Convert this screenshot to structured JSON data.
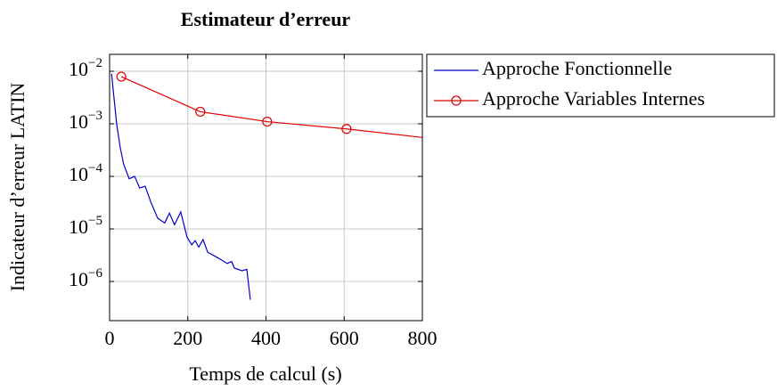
{
  "chart_data": {
    "type": "line",
    "title": "Estimateur d’erreur",
    "x_label": "Temps de calcul (s)",
    "y_label": "Indicateur d’erreur LATIN",
    "xlim": [
      0,
      800
    ],
    "xticks": [
      0,
      200,
      400,
      600,
      800
    ],
    "ylim": [
      1.8e-07,
      0.021
    ],
    "yticks": [
      {
        "value": 0.01,
        "label": "10−2"
      },
      {
        "value": 0.001,
        "label": "10−3"
      },
      {
        "value": 0.0001,
        "label": "10−4"
      },
      {
        "value": 1e-05,
        "label": "10−5"
      },
      {
        "value": 1e-06,
        "label": "10−6"
      }
    ],
    "log_y": true,
    "grid": true,
    "legend": "outside right",
    "series": [
      {
        "name": "Approche Fonctionnelle",
        "color": "#0000cc",
        "marker": "none",
        "x": [
          5,
          18,
          27,
          36,
          50,
          64,
          77,
          91,
          105,
          123,
          141,
          153,
          166,
          182,
          198,
          210,
          219,
          228,
          239,
          251,
          278,
          301,
          312,
          319,
          339,
          351,
          360
        ],
        "values": [
          0.009,
          0.001,
          0.00036,
          0.00017,
          9e-05,
          0.0001,
          6e-05,
          6.5e-05,
          3.3e-05,
          1.6e-05,
          1.3e-05,
          2e-05,
          1.2e-05,
          2.1e-05,
          7e-06,
          5e-06,
          6e-06,
          4.5e-06,
          6.3e-06,
          3.6e-06,
          2.8e-06,
          2.2e-06,
          2.4e-06,
          1.8e-06,
          1.6e-06,
          1.7e-06,
          4.5e-07
        ]
      },
      {
        "name": "Approche Variables Internes",
        "color": "#e00000",
        "marker": "circle",
        "x": [
          30,
          232,
          403,
          606,
          850
        ],
        "values": [
          0.0079,
          0.0017,
          0.0011,
          0.0008,
          0.0005
        ]
      }
    ]
  }
}
